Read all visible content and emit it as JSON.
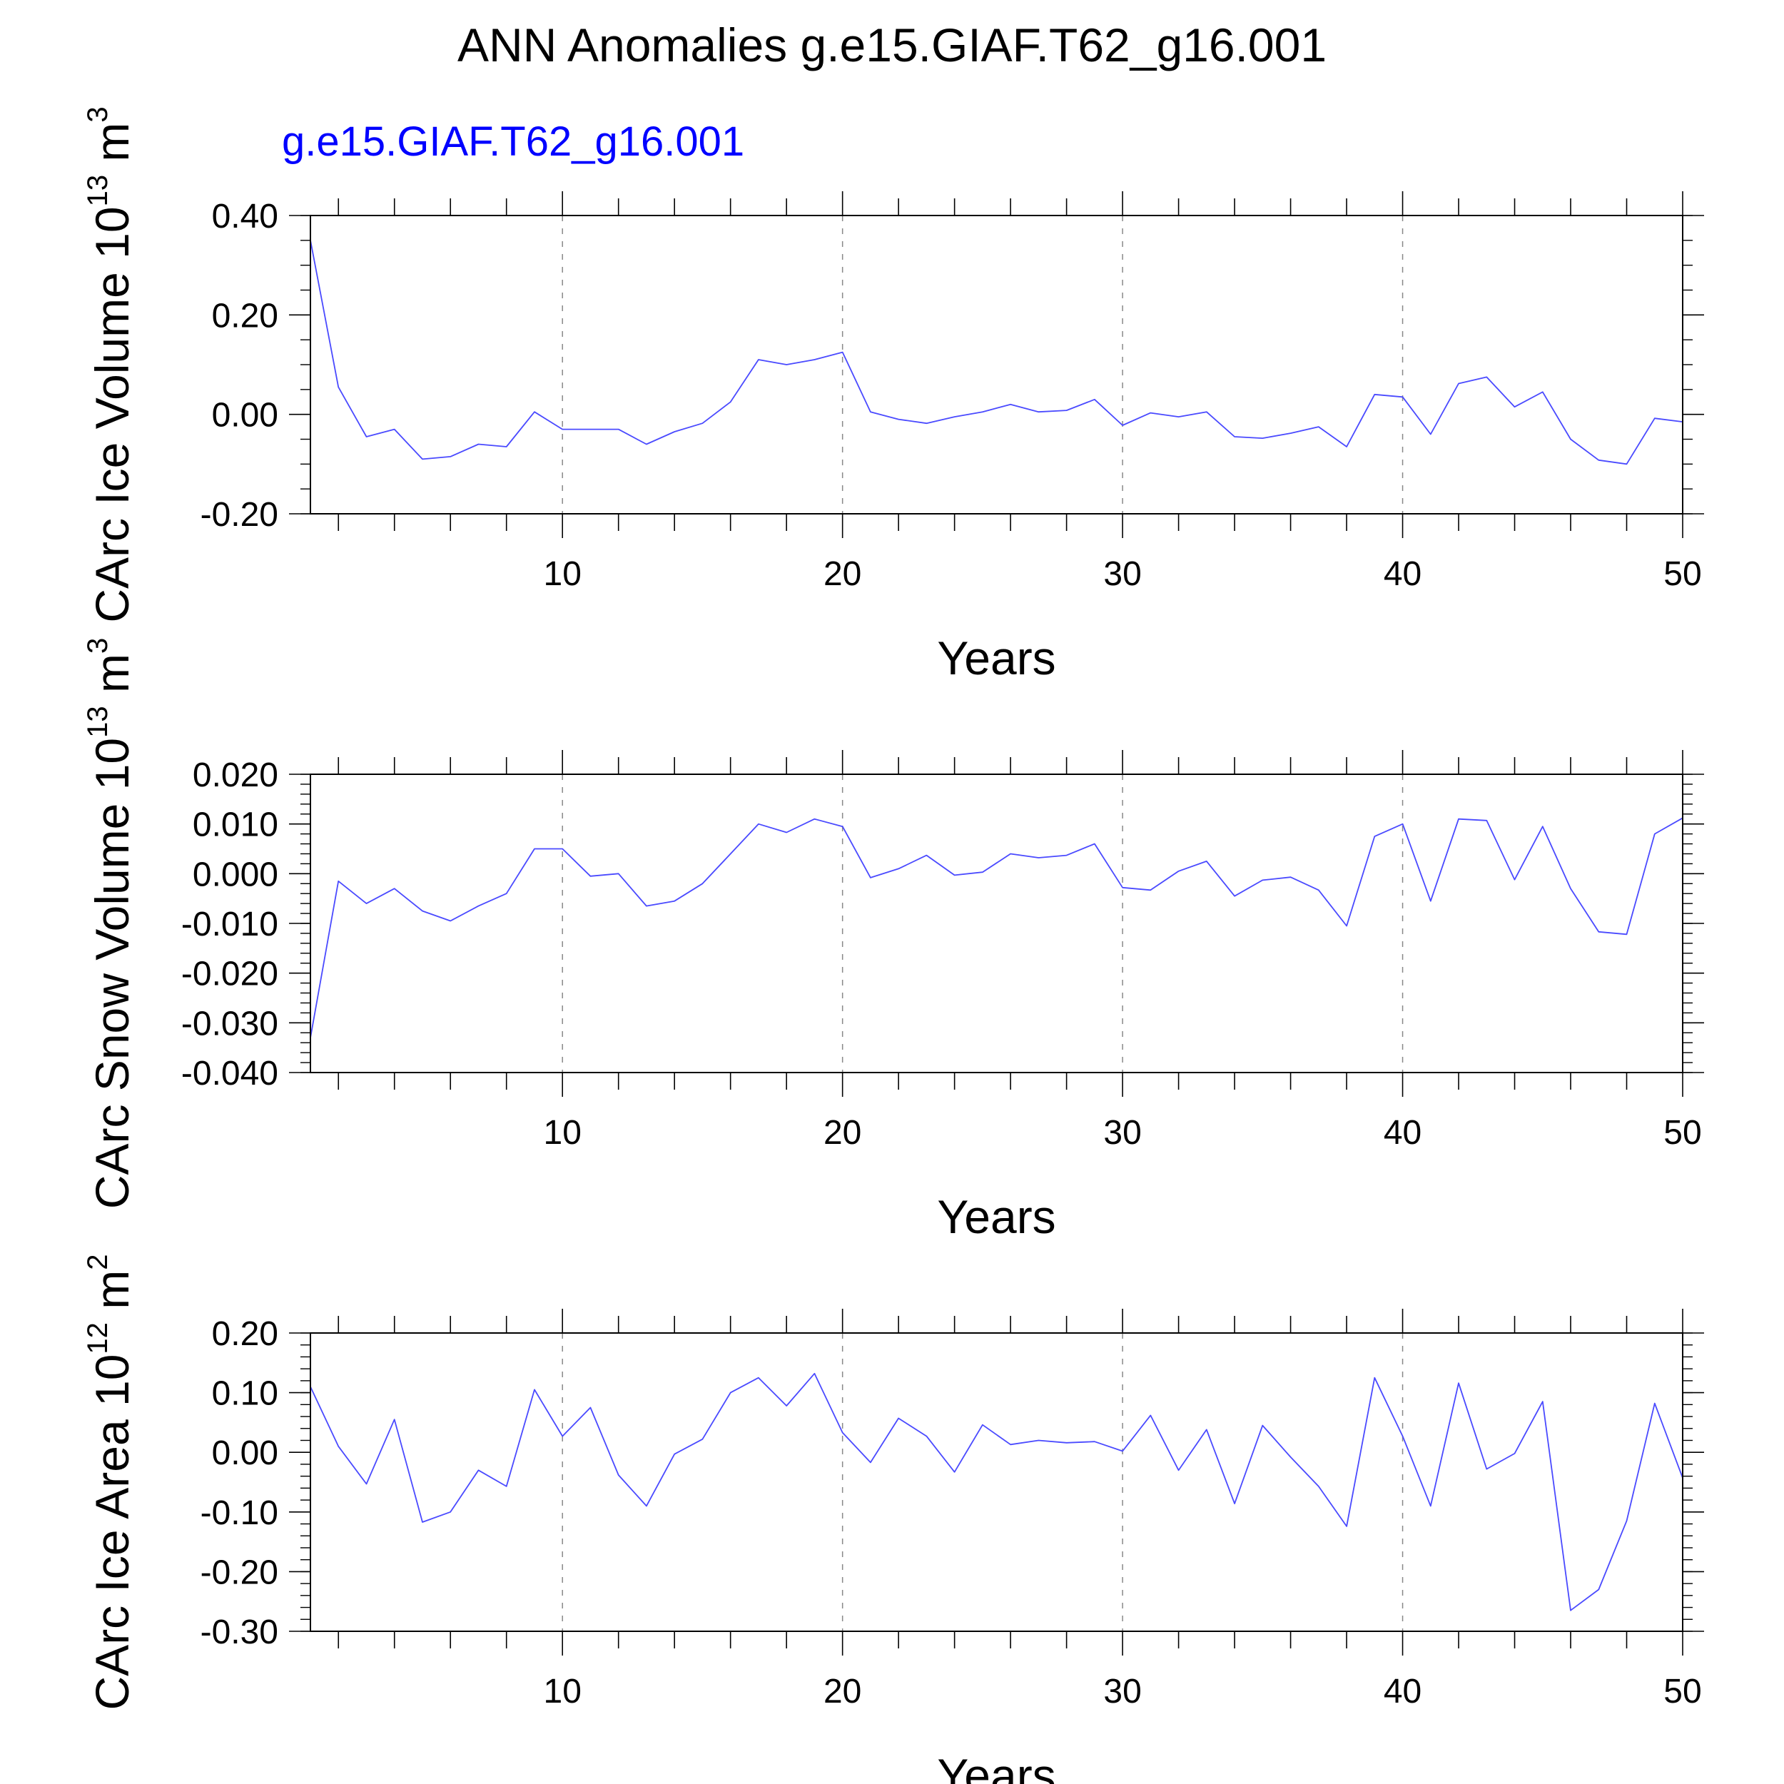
{
  "figure": {
    "title": "ANN Anomalies g.e15.GIAF.T62_g16.001",
    "case_label": "g.e15.GIAF.T62_g16.001",
    "case_label_color": "#0000ff",
    "line_color": "#4a4aff",
    "grid_color": "#888888"
  },
  "chart_data": [
    {
      "type": "line",
      "xlabel": "Years",
      "ylabel": "CArc Ice Volume 10",
      "ylabel_exponent": "13",
      "ylabel_unit": "m",
      "ylabel_unit_exponent": "3",
      "xlim": [
        1,
        50
      ],
      "ylim": [
        -0.2,
        0.4
      ],
      "x_ticks": [
        10,
        20,
        30,
        40,
        50
      ],
      "x_tick_labels": [
        "10",
        "20",
        "30",
        "40",
        "50"
      ],
      "y_ticks": [
        -0.2,
        0.0,
        0.2,
        0.4
      ],
      "y_tick_labels": [
        "-0.20",
        "0.00",
        "0.20",
        "0.40"
      ],
      "y_minor_step": 0.05,
      "grid": "vertical dashed at major x ticks",
      "x": [
        1,
        2,
        3,
        4,
        5,
        6,
        7,
        8,
        9,
        10,
        11,
        12,
        13,
        14,
        15,
        16,
        17,
        18,
        19,
        20,
        21,
        22,
        23,
        24,
        25,
        26,
        27,
        28,
        29,
        30,
        31,
        32,
        33,
        34,
        35,
        36,
        37,
        38,
        39,
        40,
        41,
        42,
        43,
        44,
        45,
        46,
        47,
        48,
        49,
        50
      ],
      "series": [
        {
          "values": [
            0.35,
            0.055,
            -0.045,
            -0.03,
            -0.09,
            -0.085,
            -0.06,
            -0.065,
            0.005,
            -0.03,
            -0.03,
            -0.03,
            -0.06,
            -0.035,
            -0.018,
            0.025,
            0.11,
            0.1,
            0.11,
            0.125,
            0.005,
            -0.01,
            -0.018,
            -0.005,
            0.005,
            0.02,
            0.005,
            0.008,
            0.03,
            -0.022,
            0.003,
            -0.005,
            0.005,
            -0.045,
            -0.048,
            -0.038,
            -0.025,
            -0.065,
            0.04,
            0.035,
            -0.04,
            0.062,
            0.075,
            0.015,
            0.045,
            -0.05,
            -0.092,
            -0.1,
            -0.008,
            -0.015
          ]
        }
      ]
    },
    {
      "type": "line",
      "xlabel": "Years",
      "ylabel": "CArc Snow Volume 10",
      "ylabel_exponent": "13",
      "ylabel_unit": "m",
      "ylabel_unit_exponent": "3",
      "xlim": [
        1,
        50
      ],
      "ylim": [
        -0.04,
        0.02
      ],
      "x_ticks": [
        10,
        20,
        30,
        40,
        50
      ],
      "x_tick_labels": [
        "10",
        "20",
        "30",
        "40",
        "50"
      ],
      "y_ticks": [
        -0.04,
        -0.03,
        -0.02,
        -0.01,
        0.0,
        0.01,
        0.02
      ],
      "y_tick_labels": [
        "-0.040",
        "-0.030",
        "-0.020",
        "-0.010",
        "0.000",
        "0.010",
        "0.020"
      ],
      "y_minor_step": 0.002,
      "grid": "vertical dashed at major x ticks",
      "x": [
        1,
        2,
        3,
        4,
        5,
        6,
        7,
        8,
        9,
        10,
        11,
        12,
        13,
        14,
        15,
        16,
        17,
        18,
        19,
        20,
        21,
        22,
        23,
        24,
        25,
        26,
        27,
        28,
        29,
        30,
        31,
        32,
        33,
        34,
        35,
        36,
        37,
        38,
        39,
        40,
        41,
        42,
        43,
        44,
        45,
        46,
        47,
        48,
        49,
        50
      ],
      "series": [
        {
          "values": [
            -0.033,
            -0.0015,
            -0.006,
            -0.003,
            -0.0075,
            -0.0095,
            -0.0065,
            -0.004,
            0.005,
            0.005,
            -0.0005,
            0.0,
            -0.0065,
            -0.0055,
            -0.002,
            0.004,
            0.01,
            0.0083,
            0.011,
            0.0095,
            -0.0008,
            0.001,
            0.0037,
            -0.0003,
            0.0003,
            0.004,
            0.0032,
            0.0037,
            0.006,
            -0.0028,
            -0.0033,
            0.0005,
            0.0025,
            -0.0045,
            -0.0013,
            -0.0007,
            -0.0033,
            -0.0105,
            0.0075,
            0.01,
            -0.0055,
            0.011,
            0.0107,
            -0.0012,
            0.0095,
            -0.003,
            -0.0117,
            -0.0122,
            0.008,
            0.0112
          ]
        }
      ]
    },
    {
      "type": "line",
      "xlabel": "Years",
      "ylabel": "CArc Ice Area 10",
      "ylabel_exponent": "12",
      "ylabel_unit": "m",
      "ylabel_unit_exponent": "2",
      "xlim": [
        1,
        50
      ],
      "ylim": [
        -0.3,
        0.2
      ],
      "x_ticks": [
        10,
        20,
        30,
        40,
        50
      ],
      "x_tick_labels": [
        "10",
        "20",
        "30",
        "40",
        "50"
      ],
      "y_ticks": [
        -0.3,
        -0.2,
        -0.1,
        0.0,
        0.1,
        0.2
      ],
      "y_tick_labels": [
        "-0.30",
        "-0.20",
        "-0.10",
        "0.00",
        "0.10",
        "0.20"
      ],
      "y_minor_step": 0.02,
      "grid": "vertical dashed at major x ticks",
      "x": [
        1,
        2,
        3,
        4,
        5,
        6,
        7,
        8,
        9,
        10,
        11,
        12,
        13,
        14,
        15,
        16,
        17,
        18,
        19,
        20,
        21,
        22,
        23,
        24,
        25,
        26,
        27,
        28,
        29,
        30,
        31,
        32,
        33,
        34,
        35,
        36,
        37,
        38,
        39,
        40,
        41,
        42,
        43,
        44,
        45,
        46,
        47,
        48,
        49,
        50
      ],
      "series": [
        {
          "values": [
            0.11,
            0.01,
            -0.053,
            0.055,
            -0.117,
            -0.1,
            -0.03,
            -0.057,
            0.105,
            0.027,
            0.075,
            -0.038,
            -0.09,
            -0.003,
            0.022,
            0.1,
            0.125,
            0.078,
            0.132,
            0.033,
            -0.017,
            0.057,
            0.027,
            -0.033,
            0.046,
            0.013,
            0.02,
            0.016,
            0.018,
            0.002,
            0.062,
            -0.03,
            0.038,
            -0.086,
            0.045,
            -0.008,
            -0.057,
            -0.124,
            0.125,
            0.027,
            -0.09,
            0.116,
            -0.028,
            -0.002,
            0.085,
            -0.265,
            -0.23,
            -0.115,
            0.082,
            -0.043
          ]
        }
      ]
    }
  ]
}
